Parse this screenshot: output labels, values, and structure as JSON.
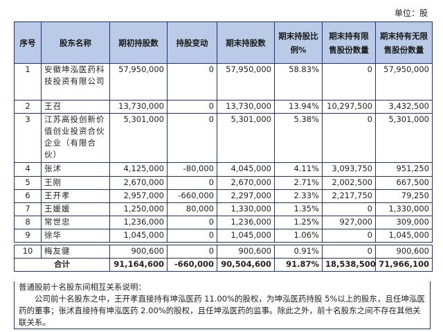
{
  "unit_label": "单位：股",
  "headers": [
    "序号",
    "股东名称",
    "期初持股数",
    "持股变动",
    "期末持股数",
    "期末持股比例%",
    "期末持有限售股份数量",
    "期末持有无限售股份数量"
  ],
  "rows": [
    {
      "idx": "1",
      "name": "安徽坤泓医药科技投资有限公司",
      "begin": "57,950,000",
      "change": "0",
      "end": "57,950,000",
      "pct": "58.83%",
      "restricted": "0",
      "unrestricted": "57,950,000"
    },
    {
      "idx": "2",
      "name": "王召",
      "begin": "13,730,000",
      "change": "0",
      "end": "13,730,000",
      "pct": "13.94%",
      "restricted": "10,297,500",
      "unrestricted": "3,432,500"
    },
    {
      "idx": "3",
      "name": "江苏高投创新价值创业投资合伙企业（有限合伙）",
      "begin": "5,301,000",
      "change": "0",
      "end": "5,301,000",
      "pct": "5.38%",
      "restricted": "0",
      "unrestricted": "5,301,000"
    },
    {
      "idx": "4",
      "name": "张沭",
      "begin": "4,125,000",
      "change": "-80,000",
      "end": "4,045,000",
      "pct": "4.11%",
      "restricted": "3,093,750",
      "unrestricted": "951,250"
    },
    {
      "idx": "5",
      "name": "王刚",
      "begin": "2,670,000",
      "change": "0",
      "end": "2,670,000",
      "pct": "2.71%",
      "restricted": "2,002,500",
      "unrestricted": "667,500"
    },
    {
      "idx": "6",
      "name": "王开孝",
      "begin": "2,957,000",
      "change": "-660,000",
      "end": "2,297,000",
      "pct": "2.33%",
      "restricted": "2,217,750",
      "unrestricted": "79,250"
    },
    {
      "idx": "7",
      "name": "王媛媛",
      "begin": "1,250,000",
      "change": "80,000",
      "end": "1,330,000",
      "pct": "1.35%",
      "restricted": "0",
      "unrestricted": "1,330,000"
    },
    {
      "idx": "8",
      "name": "常世忠",
      "begin": "1,236,000",
      "change": "0",
      "end": "1,236,000",
      "pct": "1.25%",
      "restricted": "927,000",
      "unrestricted": "309,000"
    },
    {
      "idx": "9",
      "name": "徐华",
      "begin": "1,045,000",
      "change": "0",
      "end": "1,045,000",
      "pct": "1.06%",
      "restricted": "0",
      "unrestricted": "1,045,000"
    },
    {
      "idx": "10",
      "name": "梅友健",
      "begin": "900,600",
      "change": "0",
      "end": "900,600",
      "pct": "0.91%",
      "restricted": "0",
      "unrestricted": "900,600"
    }
  ],
  "total": {
    "label": "合计",
    "begin": "91,164,600",
    "change": "-660,000",
    "end": "90,504,600",
    "pct": "91.87%",
    "restricted": "18,538,500",
    "unrestricted": "71,966,100"
  },
  "note": {
    "title": "普通股前十名股东间相互关系说明：",
    "body": "公司前十名股东之中，王开孝直接持有坤泓医药 11.00%的股权，为坤泓医药持股 5%以上的股东，且任坤泓医药的董事；张沭直接持有坤泓医药 2.00%的股权，且任坤泓医药的监事。除此之外，前十名股东之间不存在其他关联关系。"
  }
}
